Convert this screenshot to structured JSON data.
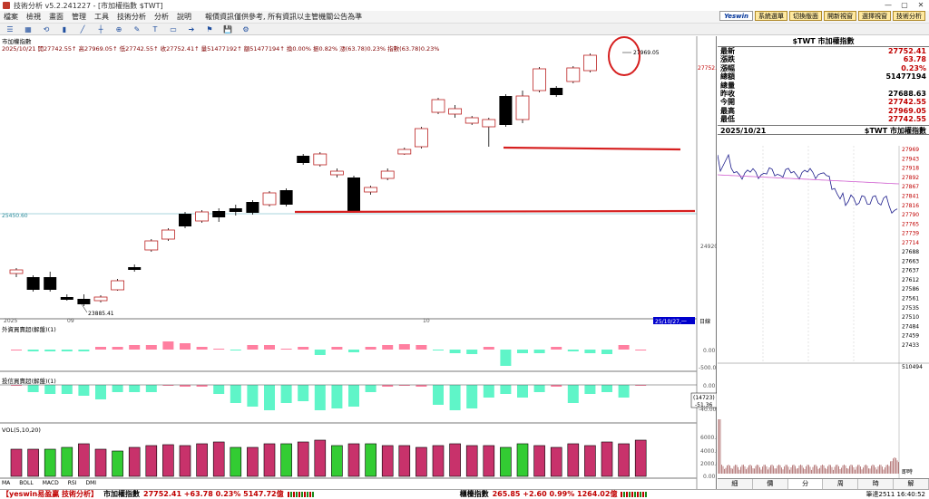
{
  "window": {
    "title": "技術分析 v5.2.241227 - [市加權指數 $TWT]",
    "controls": [
      "—",
      "▢",
      "✕"
    ]
  },
  "menu": {
    "items": [
      "檔案",
      "檢視",
      "畫面",
      "管理",
      "工具",
      "技術分析",
      "分析",
      "說明"
    ],
    "notice": "報價資訊僅供參考, 所有資訊以主管機關公告為準",
    "brand": "Yeswin",
    "right_buttons": [
      "系統選單",
      "切換版面",
      "開新視窗",
      "選擇視窗",
      "技術分析"
    ]
  },
  "toolbar": {
    "icons": [
      "layout-icon",
      "grid-icon",
      "refresh-icon",
      "bar-icon",
      "line-icon",
      "chart-type-icon",
      "zoom-icon",
      "draw-icon",
      "text-icon",
      "rect-icon",
      "arrow-icon",
      "sign-icon",
      "save-icon",
      "settings-icon"
    ]
  },
  "main_chart": {
    "label": "市加權指數",
    "info": "2025/10/21  開27742.55↑ 高27969.05↑ 低27742.55↑ 收27752.41↑ 量51477192↑ 額51477194↑ 換0.00% 振0.82% 漲(63.78)0.23% 指數(63.78)0.23%",
    "hline_label": "25450.60",
    "price_right_label": "27752.4",
    "ytick_mid": "24920",
    "high_annot": "27969.05",
    "low_annot": "23885.41",
    "xlabels": [
      "2025",
      "09",
      "10"
    ],
    "date_badge": "25/10/27,一",
    "day_badge": "日線"
  },
  "foreign_panel": {
    "label": "外資買賣超(解盤)(1)",
    "yticks": [
      "0.00",
      "-500.0"
    ],
    "colors": {
      "up": "#ff7fa0",
      "down": "#5ff5c8"
    }
  },
  "trust_panel": {
    "label": "投信買賣超(解盤)(1)",
    "yticks": [
      "0.00",
      "-40.00",
      "-80.00"
    ],
    "badge_top": "(14723)",
    "badge_bottom": "-51.36"
  },
  "vol_panel": {
    "label": "VOL(5,10,20)",
    "yticks": [
      "6000.0",
      "4000.0",
      "2000.0",
      "0.00"
    ]
  },
  "bottom_tabs": [
    "MA",
    "BOLL",
    "MACD",
    "RSI",
    "DMI"
  ],
  "quote": {
    "head": "$TWT 市加權指數",
    "rows": [
      {
        "k": "最新",
        "v": "27752.41",
        "c": "red"
      },
      {
        "k": "漲跌",
        "v": "63.78",
        "c": "red"
      },
      {
        "k": "漲幅",
        "v": "0.23%",
        "c": "red"
      },
      {
        "k": "總額",
        "v": "51477194",
        "c": "black"
      },
      {
        "k": "總量",
        "v": "",
        "c": "black"
      },
      {
        "k": "昨收",
        "v": "27688.63",
        "c": "black"
      },
      {
        "k": "今開",
        "v": "27742.55",
        "c": "red"
      },
      {
        "k": "最高",
        "v": "27969.05",
        "c": "red"
      },
      {
        "k": "最低",
        "v": "27742.55",
        "c": "red"
      }
    ]
  },
  "intraday": {
    "date": "2025/10/21",
    "title": "$TWT 市加權指數",
    "ylabels_red": [
      "27969",
      "27943",
      "27918",
      "27892",
      "27867",
      "27841",
      "27816",
      "27790",
      "27765",
      "27739",
      "27714"
    ],
    "ylabels_black": [
      "27688",
      "27663",
      "27637",
      "27612",
      "27586",
      "27561",
      "27535",
      "27510",
      "27484",
      "27459",
      "27433"
    ],
    "vol_label": "510494",
    "vol_bottom": "即時",
    "tabs": [
      "細",
      "價",
      "分",
      "周",
      "時",
      "解"
    ]
  },
  "status": {
    "brand": "【yeswin易盈贏 技術分析】",
    "idx1": "市加權指數",
    "idx1_val": "27752.41 +63.78 0.23% 5147.72億",
    "idx2": "櫃檯指數",
    "idx2_val": "265.85 +2.60 0.99% 1264.02億",
    "time": "筆達2511  16:40:52"
  }
}
